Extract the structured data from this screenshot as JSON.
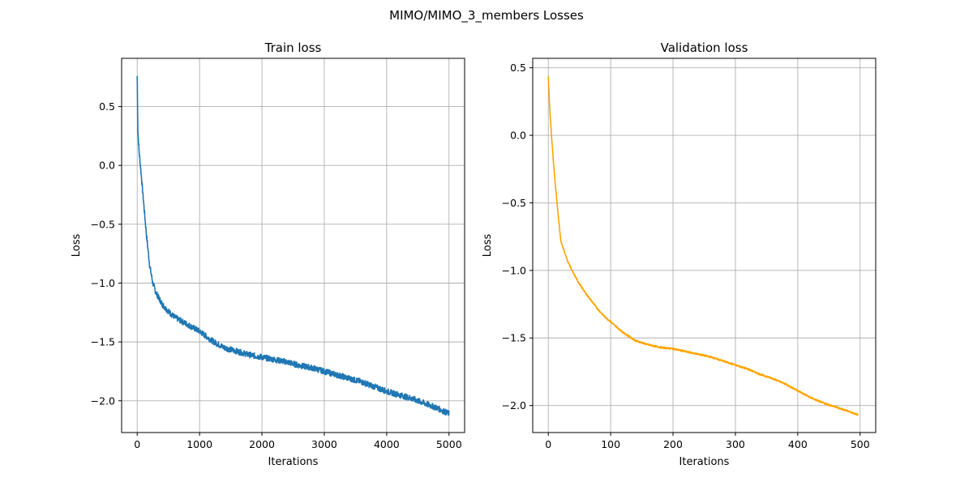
{
  "figure": {
    "title": "MIMO/MIMO_3_members Losses"
  },
  "chart_data": [
    {
      "type": "line",
      "title": "Train loss",
      "xlabel": "Iterations",
      "ylabel": "Loss",
      "xlim": [
        -250,
        5250
      ],
      "ylim": [
        -2.27,
        0.91
      ],
      "xticks": [
        0,
        1000,
        2000,
        3000,
        4000,
        5000
      ],
      "xtick_labels": [
        "0",
        "1000",
        "2000",
        "3000",
        "4000",
        "5000"
      ],
      "yticks": [
        -2.0,
        -1.5,
        -1.0,
        -0.5,
        0.0,
        0.5
      ],
      "ytick_labels": [
        "−2.0",
        "−1.5",
        "−1.0",
        "−0.5",
        "0.0",
        "0.5"
      ],
      "grid": true,
      "color": "#1f77b4",
      "noise": 0.025,
      "series": [
        {
          "x": [
            0,
            10,
            30,
            60,
            100,
            150,
            200,
            250,
            300,
            400,
            500,
            600,
            700,
            800,
            900,
            1000,
            1200,
            1400,
            1600,
            1800,
            2000,
            2200,
            2400,
            2600,
            2800,
            3000,
            3200,
            3400,
            3600,
            3800,
            4000,
            4200,
            4400,
            4600,
            4800,
            5000
          ],
          "values": [
            0.76,
            0.3,
            0.12,
            -0.05,
            -0.3,
            -0.6,
            -0.85,
            -1.0,
            -1.08,
            -1.18,
            -1.24,
            -1.29,
            -1.32,
            -1.35,
            -1.38,
            -1.41,
            -1.49,
            -1.55,
            -1.58,
            -1.61,
            -1.63,
            -1.65,
            -1.67,
            -1.7,
            -1.72,
            -1.75,
            -1.78,
            -1.81,
            -1.84,
            -1.88,
            -1.92,
            -1.95,
            -1.98,
            -2.02,
            -2.06,
            -2.11
          ]
        }
      ]
    },
    {
      "type": "line",
      "title": "Validation loss",
      "xlabel": "Iterations",
      "ylabel": "Loss",
      "xlim": [
        -25,
        525
      ],
      "ylim": [
        -2.2,
        0.57
      ],
      "xticks": [
        0,
        100,
        200,
        300,
        400,
        500
      ],
      "xtick_labels": [
        "0",
        "100",
        "200",
        "300",
        "400",
        "500"
      ],
      "yticks": [
        -2.0,
        -1.5,
        -1.0,
        -0.5,
        0.0,
        0.5
      ],
      "ytick_labels": [
        "−2.0",
        "−1.5",
        "−1.0",
        "−0.5",
        "0.0",
        "0.5"
      ],
      "grid": true,
      "color": "#ffa500",
      "noise": 0.006,
      "series": [
        {
          "x": [
            0,
            2,
            5,
            10,
            15,
            20,
            25,
            30,
            40,
            50,
            60,
            70,
            80,
            90,
            100,
            120,
            140,
            160,
            180,
            200,
            220,
            240,
            260,
            280,
            300,
            320,
            340,
            360,
            380,
            400,
            420,
            440,
            460,
            480,
            497
          ],
          "values": [
            0.44,
            0.22,
            0.0,
            -0.3,
            -0.55,
            -0.78,
            -0.85,
            -0.92,
            -1.02,
            -1.1,
            -1.17,
            -1.23,
            -1.29,
            -1.34,
            -1.38,
            -1.46,
            -1.52,
            -1.55,
            -1.57,
            -1.58,
            -1.6,
            -1.62,
            -1.64,
            -1.67,
            -1.7,
            -1.73,
            -1.77,
            -1.8,
            -1.84,
            -1.89,
            -1.94,
            -1.98,
            -2.01,
            -2.04,
            -2.07
          ]
        }
      ]
    }
  ]
}
